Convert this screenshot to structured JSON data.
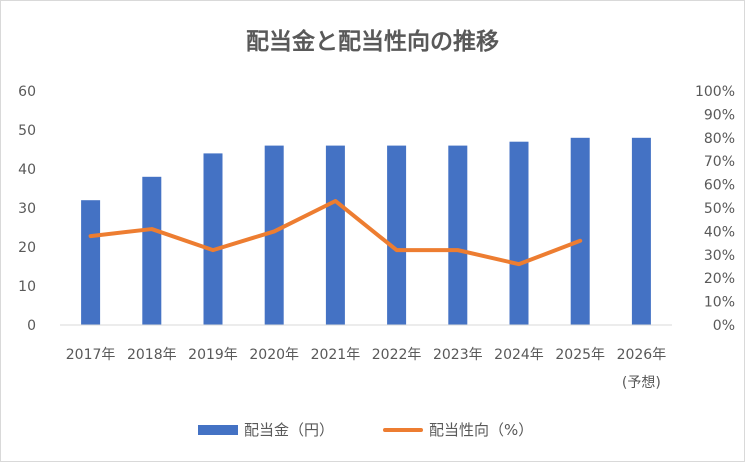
{
  "chart_data": {
    "type": "bar",
    "title": "配当金と配当性向の推移",
    "categories": [
      "2017年",
      "2018年",
      "2019年",
      "2020年",
      "2021年",
      "2022年",
      "2023年",
      "2024年",
      "2025年",
      "2026年"
    ],
    "category_sublabels": [
      "",
      "",
      "",
      "",
      "",
      "",
      "",
      "",
      "",
      "(予想)"
    ],
    "series": [
      {
        "name": "配当金（円）",
        "type": "bar",
        "axis": "left",
        "color": "#4472c4",
        "values": [
          32,
          38,
          44,
          46,
          46,
          46,
          46,
          47,
          48,
          48
        ]
      },
      {
        "name": "配当性向（%）",
        "type": "line",
        "axis": "right",
        "color": "#ed7d31",
        "values": [
          38,
          41,
          32,
          40,
          53,
          32,
          32,
          26,
          36,
          null
        ]
      }
    ],
    "y_left": {
      "min": 0,
      "max": 60,
      "ticks": [
        "0",
        "10",
        "20",
        "30",
        "40",
        "50",
        "60"
      ]
    },
    "y_right": {
      "min": 0,
      "max": 100,
      "ticks": [
        "0%",
        "10%",
        "20%",
        "30%",
        "40%",
        "50%",
        "60%",
        "70%",
        "80%",
        "90%",
        "100%"
      ]
    },
    "grid": false,
    "legend_position": "bottom"
  }
}
